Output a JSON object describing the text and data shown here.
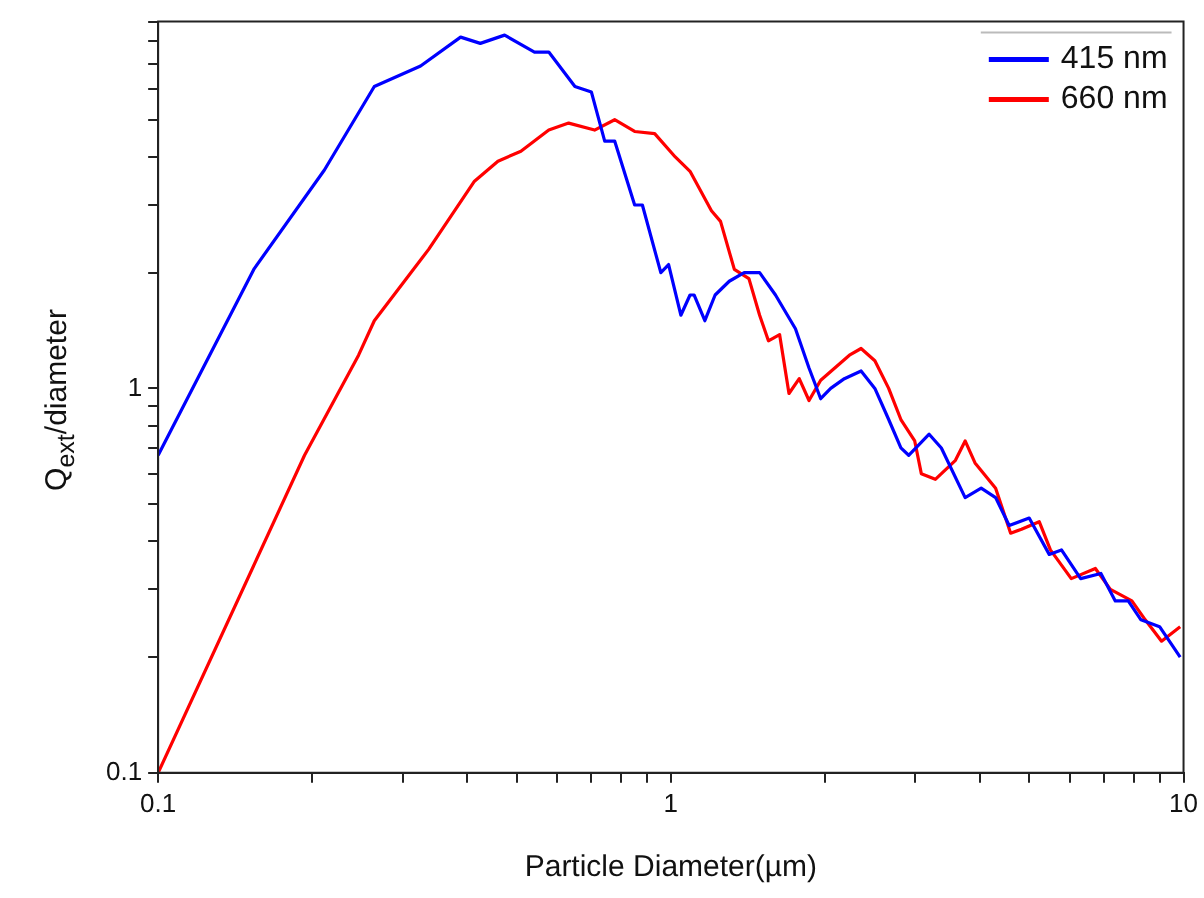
{
  "chart_data": {
    "type": "line",
    "xlabel": "Particle Diameter(µm)",
    "ylabel": "Q$_{ext}$/diameter",
    "log": "xy",
    "grid": false,
    "legend": "top right",
    "marker": "none",
    "line_style": "solid",
    "xlim": [
      0.1,
      10
    ],
    "ylim": [
      0.1,
      9
    ],
    "xticks": [
      0.1,
      {
        "value": 0.2,
        "label": null
      },
      {
        "value": 0.3,
        "label": null
      },
      {
        "value": 0.4,
        "label": null
      },
      {
        "value": 0.5,
        "label": null
      },
      {
        "value": 0.6,
        "label": null
      },
      {
        "value": 0.7,
        "label": null
      },
      {
        "value": 0.8,
        "label": null
      },
      {
        "value": 0.9,
        "label": null
      },
      1,
      {
        "value": 2,
        "label": null
      },
      {
        "value": 3,
        "label": null
      },
      {
        "value": 4,
        "label": null
      },
      {
        "value": 5,
        "label": null
      },
      {
        "value": 6,
        "label": null
      },
      {
        "value": 7,
        "label": null
      },
      {
        "value": 8,
        "label": null
      },
      {
        "value": 9,
        "label": null
      },
      10
    ],
    "yticks": [
      0.1,
      {
        "value": 0.2,
        "label": null
      },
      {
        "value": 0.3,
        "label": null
      },
      {
        "value": 0.4,
        "label": null
      },
      {
        "value": 0.5,
        "label": null
      },
      {
        "value": 0.6,
        "label": null
      },
      {
        "value": 0.7,
        "label": null
      },
      {
        "value": 0.8,
        "label": null
      },
      {
        "value": 0.9,
        "label": null
      },
      1,
      {
        "value": 2,
        "label": null
      },
      {
        "value": 3,
        "label": null
      },
      {
        "value": 4,
        "label": null
      },
      {
        "value": 5,
        "label": null
      },
      {
        "value": 6,
        "label": null
      },
      {
        "value": 7,
        "label": null
      },
      {
        "value": 8,
        "label": null
      },
      {
        "value": 9,
        "label": null
      }
    ],
    "series": [
      {
        "name": "415 nm",
        "color": "#0000ff",
        "x": [
          0.1,
          0.154,
          0.211,
          0.264,
          0.325,
          0.389,
          0.425,
          0.474,
          0.542,
          0.578,
          0.65,
          0.7,
          0.743,
          0.777,
          0.85,
          0.88,
          0.956,
          0.99,
          1.046,
          1.09,
          1.11,
          1.165,
          1.22,
          1.3,
          1.39,
          1.49,
          1.6,
          1.75,
          1.86,
          1.96,
          2.05,
          2.18,
          2.35,
          2.5,
          2.66,
          2.81,
          2.91,
          3.19,
          3.37,
          3.75,
          4.03,
          4.3,
          4.57,
          5.0,
          5.47,
          5.78,
          6.3,
          6.9,
          7.36,
          7.8,
          8.26,
          8.98,
          9.85
        ],
        "values": [
          0.67,
          2.05,
          3.7,
          6.1,
          6.9,
          8.2,
          7.9,
          8.3,
          7.5,
          7.5,
          6.1,
          5.9,
          4.4,
          4.4,
          3.0,
          3.0,
          2.0,
          2.1,
          1.55,
          1.75,
          1.75,
          1.5,
          1.75,
          1.9,
          2.0,
          2.0,
          1.75,
          1.43,
          1.13,
          0.94,
          1.0,
          1.06,
          1.11,
          1.0,
          0.83,
          0.7,
          0.67,
          0.76,
          0.7,
          0.52,
          0.55,
          0.52,
          0.44,
          0.46,
          0.37,
          0.38,
          0.32,
          0.33,
          0.28,
          0.28,
          0.25,
          0.24,
          0.2
        ]
      },
      {
        "name": "660 nm",
        "color": "#ff0000",
        "x": [
          0.1,
          0.193,
          0.246,
          0.264,
          0.337,
          0.414,
          0.46,
          0.51,
          0.578,
          0.632,
          0.71,
          0.777,
          0.85,
          0.93,
          1.02,
          1.09,
          1.2,
          1.25,
          1.33,
          1.42,
          1.49,
          1.55,
          1.63,
          1.7,
          1.78,
          1.86,
          1.96,
          2.23,
          2.35,
          2.5,
          2.66,
          2.81,
          2.99,
          3.08,
          3.28,
          3.59,
          3.75,
          3.92,
          4.3,
          4.6,
          4.83,
          5.23,
          5.5,
          6.04,
          6.73,
          7.2,
          7.93,
          8.42,
          9.06,
          9.85
        ],
        "values": [
          0.1,
          0.67,
          1.22,
          1.5,
          2.3,
          3.46,
          3.9,
          4.14,
          4.7,
          4.9,
          4.7,
          5.0,
          4.66,
          4.6,
          4.0,
          3.67,
          2.9,
          2.72,
          2.04,
          1.93,
          1.55,
          1.33,
          1.38,
          0.97,
          1.06,
          0.93,
          1.05,
          1.22,
          1.27,
          1.18,
          1.0,
          0.83,
          0.73,
          0.6,
          0.58,
          0.65,
          0.73,
          0.64,
          0.55,
          0.42,
          0.43,
          0.45,
          0.38,
          0.32,
          0.34,
          0.3,
          0.28,
          0.25,
          0.22,
          0.24
        ]
      }
    ]
  }
}
